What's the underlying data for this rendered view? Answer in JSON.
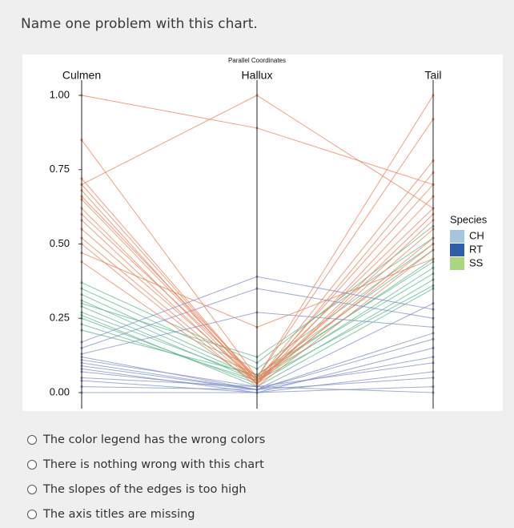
{
  "question": "Name one problem with this chart.",
  "chart_data": {
    "type": "parallel",
    "title": "Parallel Coordinates",
    "axes": [
      "Culmen",
      "Hallux",
      "Tail"
    ],
    "ylim": [
      0,
      1
    ],
    "yticks": [
      {
        "value": 0,
        "label": "0.00"
      },
      {
        "value": 0.25,
        "label": "0.25"
      },
      {
        "value": 0.5,
        "label": "0.50"
      },
      {
        "value": 0.75,
        "label": "0.75"
      },
      {
        "value": 1,
        "label": "1.00"
      }
    ],
    "legend_title": "Species",
    "legend": "right",
    "series": [
      {
        "name": "CH",
        "color": "#a3c6de",
        "line_color": "#5cb88a",
        "values": [
          [
            0.37,
            0.1,
            0.56
          ],
          [
            0.35,
            0.08,
            0.5
          ],
          [
            0.33,
            0.06,
            0.48
          ],
          [
            0.31,
            0.05,
            0.45
          ],
          [
            0.29,
            0.04,
            0.42
          ],
          [
            0.27,
            0.05,
            0.4
          ],
          [
            0.25,
            0.03,
            0.38
          ],
          [
            0.23,
            0.04,
            0.36
          ],
          [
            0.21,
            0.06,
            0.44
          ],
          [
            0.3,
            0.12,
            0.52
          ],
          [
            0.26,
            0.02,
            0.35
          ]
        ]
      },
      {
        "name": "RT",
        "color": "#2f5ea6",
        "line_color": "#ee7f55",
        "values": [
          [
            1.0,
            0.89,
            0.7
          ],
          [
            0.7,
            1.0,
            0.62
          ],
          [
            0.85,
            0.05,
            0.92
          ],
          [
            0.72,
            0.04,
            0.78
          ],
          [
            0.68,
            0.03,
            0.74
          ],
          [
            0.65,
            0.04,
            0.7
          ],
          [
            0.62,
            0.03,
            0.66
          ],
          [
            0.6,
            0.05,
            0.62
          ],
          [
            0.58,
            0.03,
            0.58
          ],
          [
            0.55,
            0.04,
            0.55
          ],
          [
            0.52,
            0.03,
            0.52
          ],
          [
            0.5,
            0.02,
            0.48
          ],
          [
            0.47,
            0.22,
            0.45
          ],
          [
            0.44,
            0.03,
            0.6
          ],
          [
            0.66,
            0.05,
            1.0
          ],
          [
            0.7,
            0.04,
            0.5
          ]
        ]
      },
      {
        "name": "SS",
        "color": "#a9d67f",
        "line_color": "#7f8fca",
        "values": [
          [
            0.17,
            0.39,
            0.28
          ],
          [
            0.15,
            0.35,
            0.25
          ],
          [
            0.13,
            0.27,
            0.22
          ],
          [
            0.12,
            0.01,
            0.2
          ],
          [
            0.1,
            0.01,
            0.18
          ],
          [
            0.08,
            0.0,
            0.15
          ],
          [
            0.07,
            0.01,
            0.12
          ],
          [
            0.05,
            0.02,
            0.1
          ],
          [
            0.04,
            0.0,
            0.07
          ],
          [
            0.02,
            0.01,
            0.05
          ],
          [
            0.0,
            0.0,
            0.02
          ],
          [
            0.09,
            0.01,
            0.3
          ],
          [
            0.11,
            0.02,
            0.0
          ]
        ]
      }
    ]
  },
  "options": [
    "The color legend has the wrong colors",
    "There is nothing wrong with this chart",
    "The slopes of the edges is too high",
    "The axis titles are missing"
  ]
}
